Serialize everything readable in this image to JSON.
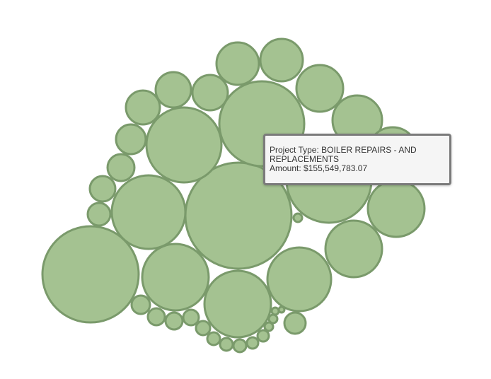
{
  "chart_data": {
    "type": "bubble",
    "title": "",
    "bubble_count": 40,
    "colors": {
      "fill": "#a4c291",
      "stroke": "#7a9a6b"
    },
    "highlighted": {
      "project_type": "BOILER REPAIRS - AND REPLACEMENTS",
      "amount": 155549783.07
    }
  },
  "tooltip": {
    "type_label": "Project Type:",
    "type_value": "BOILER REPAIRS - AND REPLACEMENTS",
    "amount_label": "Amount:",
    "amount_value": "$155,549,783.07"
  }
}
